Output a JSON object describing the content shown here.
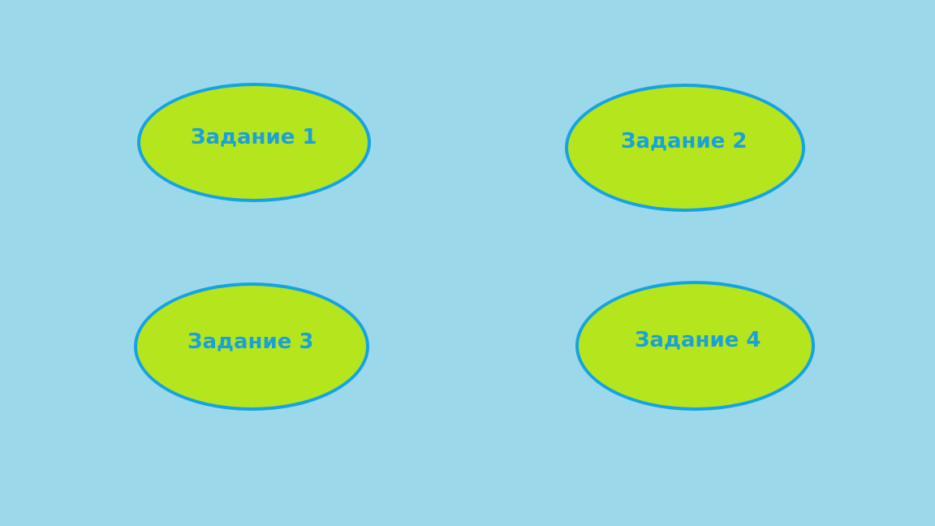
{
  "colors": {
    "background": "#9bd9ea",
    "ellipse_fill": "#b5e61d",
    "ellipse_border": "#14a3e3",
    "label_text": "#1ba1d9"
  },
  "tasks": [
    {
      "label": "Задание 1"
    },
    {
      "label": "Задание 2"
    },
    {
      "label": "Задание 3"
    },
    {
      "label": "Задание 4"
    }
  ]
}
